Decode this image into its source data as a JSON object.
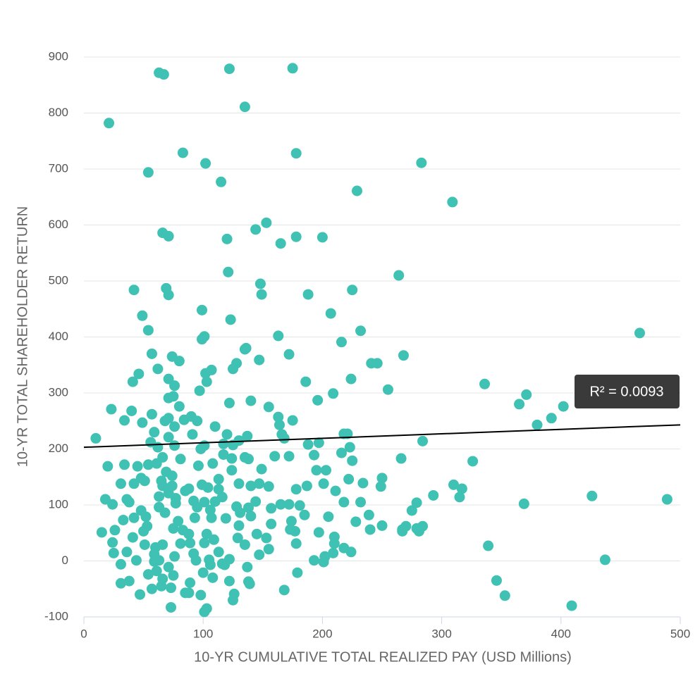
{
  "chart_data": {
    "type": "scatter",
    "xlabel": "10-YR CUMULATIVE TOTAL REALIZED PAY (USD Millions)",
    "ylabel": "10-YR TOTAL SHAREHOLDER RETURN",
    "annotation": "R² = 0.0093",
    "trendline": {
      "intercept": 203,
      "slope": 0.08,
      "color": "#000000"
    },
    "color": "#3fc1b3",
    "grid": true,
    "xlim": [
      0,
      500
    ],
    "xticks": [
      0,
      100,
      200,
      300,
      400,
      500
    ],
    "ylim": [
      -100,
      900
    ],
    "yticks": [
      -100,
      0,
      100,
      200,
      300,
      400,
      500,
      600,
      700,
      800,
      900
    ],
    "x": [
      10,
      21,
      63,
      67,
      122,
      175,
      135,
      83,
      178,
      54,
      102,
      283,
      115,
      229,
      309,
      66,
      71,
      120,
      144,
      153,
      165,
      178,
      200,
      121,
      264,
      42,
      69,
      71,
      148,
      149,
      188,
      225,
      49,
      99,
      123,
      207,
      54,
      101,
      99,
      163,
      232,
      466,
      57,
      74,
      80,
      135,
      136,
      147,
      172,
      216,
      241,
      246,
      268,
      41,
      46,
      62,
      71,
      76,
      102,
      103,
      107,
      128,
      125,
      186,
      224,
      336,
      23,
      40,
      34,
      49,
      57,
      71,
      75,
      80,
      71,
      68,
      76,
      84,
      90,
      95,
      97,
      122,
      140,
      155,
      163,
      164,
      175,
      196,
      209,
      255,
      365,
      371,
      380,
      392,
      402,
      56,
      59,
      62,
      76,
      71,
      91,
      98,
      101,
      110,
      117,
      120,
      125,
      130,
      137,
      166,
      168,
      188,
      197,
      218,
      221,
      223,
      284,
      216,
      20,
      34,
      45,
      54,
      61,
      81,
      96,
      108,
      117,
      124,
      135,
      138,
      149,
      160,
      172,
      193,
      195,
      203,
      225,
      266,
      326,
      31,
      42,
      48,
      51,
      65,
      74,
      88,
      99,
      104,
      113,
      130,
      140,
      147,
      155,
      178,
      187,
      201,
      211,
      222,
      234,
      250,
      249,
      293,
      310,
      317,
      315,
      426,
      489,
      18,
      24,
      36,
      38,
      63,
      77,
      92,
      101,
      110,
      116,
      128,
      138,
      144,
      157,
      165,
      172,
      181,
      218,
      232,
      275,
      279,
      369,
      33,
      42,
      52,
      68,
      79,
      93,
      107,
      119,
      131,
      140,
      157,
      174,
      185,
      205,
      228,
      239,
      250,
      267,
      270,
      279,
      284,
      281,
      15,
      26,
      50,
      53,
      75,
      83,
      103,
      130,
      145,
      173,
      177,
      197,
      240,
      267,
      24,
      41,
      51,
      60,
      66,
      81,
      89,
      101,
      109,
      129,
      135,
      153,
      178,
      210,
      210,
      218,
      339,
      25,
      36,
      59,
      76,
      92,
      105,
      113,
      122,
      147,
      155,
      202,
      209,
      224,
      437,
      44,
      59,
      63,
      94,
      106,
      118,
      193,
      201,
      202,
      31,
      71,
      54,
      61,
      100,
      116,
      137,
      179,
      31,
      38,
      66,
      75,
      89,
      108,
      122,
      138,
      139,
      346,
      47,
      57,
      65,
      73,
      85,
      88,
      98,
      126,
      125,
      168,
      353,
      73,
      103,
      101,
      409,
      69,
      66,
      71,
      85,
      95,
      106,
      88,
      77,
      63,
      48,
      66,
      74,
      113,
      124
    ],
    "values": [
      219,
      782,
      872,
      869,
      879,
      880,
      811,
      729,
      728,
      694,
      710,
      711,
      677,
      661,
      641,
      586,
      580,
      575,
      592,
      604,
      567,
      579,
      578,
      516,
      510,
      484,
      487,
      475,
      495,
      476,
      476,
      484,
      438,
      448,
      431,
      442,
      412,
      401,
      396,
      402,
      411,
      407,
      370,
      365,
      357,
      378,
      380,
      359,
      369,
      391,
      353,
      353,
      367,
      320,
      334,
      343,
      325,
      313,
      335,
      320,
      341,
      353,
      343,
      320,
      325,
      316,
      271,
      268,
      251,
      247,
      262,
      291,
      294,
      276,
      255,
      250,
      240,
      252,
      258,
      250,
      304,
      282,
      286,
      275,
      257,
      243,
      251,
      287,
      299,
      306,
      280,
      297,
      243,
      255,
      276,
      212,
      230,
      203,
      206,
      221,
      226,
      200,
      206,
      240,
      209,
      226,
      207,
      215,
      223,
      226,
      219,
      208,
      211,
      227,
      227,
      203,
      214,
      193,
      169,
      172,
      169,
      172,
      174,
      182,
      170,
      174,
      190,
      183,
      185,
      182,
      164,
      187,
      187,
      189,
      162,
      162,
      179,
      183,
      178,
      138,
      138,
      148,
      143,
      143,
      134,
      129,
      136,
      131,
      128,
      138,
      134,
      138,
      133,
      128,
      134,
      138,
      125,
      146,
      139,
      148,
      133,
      117,
      136,
      129,
      114,
      116,
      110,
      110,
      101,
      110,
      105,
      115,
      112,
      107,
      105,
      106,
      114,
      97,
      95,
      106,
      94,
      101,
      101,
      99,
      105,
      105,
      90,
      104,
      102,
      73,
      77,
      79,
      86,
      71,
      77,
      77,
      76,
      86,
      80,
      66,
      71,
      82,
      79,
      70,
      82,
      63,
      56,
      62,
      58,
      62,
      53,
      51,
      55,
      53,
      62,
      58,
      55,
      48,
      63,
      48,
      56,
      53,
      51,
      56,
      53,
      33,
      42,
      29,
      24,
      29,
      31,
      32,
      32,
      38,
      41,
      29,
      41,
      31,
      43,
      31,
      23,
      27,
      14,
      16,
      12,
      8,
      13,
      2,
      16,
      3,
      11,
      21,
      8,
      14,
      16,
      2,
      1,
      -1,
      1,
      1,
      -7,
      -7,
      1,
      -2,
      7,
      -6,
      -11,
      -24,
      -18,
      -21,
      -5,
      -11,
      -21,
      -40,
      -36,
      -32,
      -26,
      -39,
      -30,
      -36,
      -37,
      -41,
      -35,
      -60,
      -50,
      -45,
      -48,
      -57,
      -57,
      -61,
      -59,
      -70,
      -52,
      -62,
      -83,
      -85,
      -91,
      -80,
      159,
      134,
      121,
      125,
      96,
      91,
      48,
      103,
      96,
      90,
      185,
      152,
      146,
      162
    ]
  }
}
